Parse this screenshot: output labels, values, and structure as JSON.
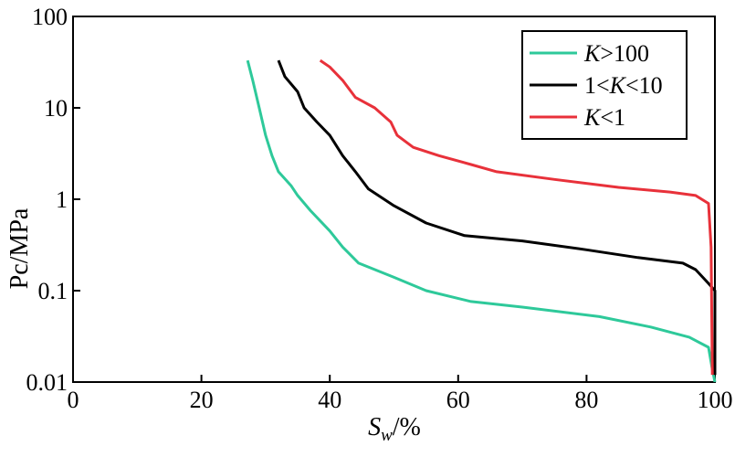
{
  "chart_data": {
    "type": "line",
    "xlabel": {
      "main": "S",
      "sub": "w",
      "unit": "/%"
    },
    "ylabel": "Pc/MPa",
    "xlim": [
      0,
      100
    ],
    "ylim": [
      0.01,
      100
    ],
    "yscale": "log",
    "grid": false,
    "legend_position": "top-right",
    "x_ticks": [
      "0",
      "20",
      "40",
      "60",
      "80",
      "100"
    ],
    "y_ticks": [
      "0.01",
      "0.1",
      "1",
      "10",
      "100"
    ],
    "series": [
      {
        "name": "K>100",
        "name_parts": [
          {
            "text": "K",
            "italic": true
          },
          {
            "text": ">100",
            "italic": false
          }
        ],
        "color": "#2ec99a",
        "points": [
          [
            27.2,
            33
          ],
          [
            28,
            20
          ],
          [
            29,
            10
          ],
          [
            30,
            5
          ],
          [
            31,
            3
          ],
          [
            32,
            2
          ],
          [
            34,
            1.4
          ],
          [
            35,
            1.1
          ],
          [
            37,
            0.75
          ],
          [
            40,
            0.45
          ],
          [
            42,
            0.3
          ],
          [
            44.5,
            0.2
          ],
          [
            50,
            0.14
          ],
          [
            55,
            0.1
          ],
          [
            62,
            0.076
          ],
          [
            70,
            0.066
          ],
          [
            82,
            0.052
          ],
          [
            90,
            0.04
          ],
          [
            96,
            0.031
          ],
          [
            99,
            0.024
          ],
          [
            99.5,
            0.015
          ],
          [
            100,
            0.01
          ]
        ]
      },
      {
        "name": "1<K<10",
        "name_parts": [
          {
            "text": "1<",
            "italic": false
          },
          {
            "text": "K",
            "italic": true
          },
          {
            "text": "<10",
            "italic": false
          }
        ],
        "color": "#000000",
        "points": [
          [
            32,
            33
          ],
          [
            33,
            22
          ],
          [
            35,
            15
          ],
          [
            36,
            10
          ],
          [
            38,
            7
          ],
          [
            40,
            5
          ],
          [
            42,
            3
          ],
          [
            44,
            2
          ],
          [
            46,
            1.3
          ],
          [
            50,
            0.85
          ],
          [
            55,
            0.55
          ],
          [
            61,
            0.4
          ],
          [
            70,
            0.35
          ],
          [
            80,
            0.28
          ],
          [
            88,
            0.23
          ],
          [
            95,
            0.2
          ],
          [
            97,
            0.17
          ],
          [
            99,
            0.12
          ],
          [
            100,
            0.1
          ],
          [
            100.2,
            0.012
          ]
        ]
      },
      {
        "name": "K<1",
        "name_parts": [
          {
            "text": "K",
            "italic": true
          },
          {
            "text": "<1",
            "italic": false
          }
        ],
        "color": "#e8313a",
        "points": [
          [
            38.5,
            33
          ],
          [
            40,
            28
          ],
          [
            42,
            20
          ],
          [
            44,
            13
          ],
          [
            47,
            10
          ],
          [
            49.5,
            7
          ],
          [
            50.5,
            5
          ],
          [
            53,
            3.7
          ],
          [
            57,
            3
          ],
          [
            62,
            2.4
          ],
          [
            66,
            2
          ],
          [
            75,
            1.65
          ],
          [
            85,
            1.35
          ],
          [
            93,
            1.2
          ],
          [
            97,
            1.1
          ],
          [
            99,
            0.9
          ],
          [
            99.4,
            0.3
          ],
          [
            99.6,
            0.012
          ]
        ]
      }
    ]
  }
}
